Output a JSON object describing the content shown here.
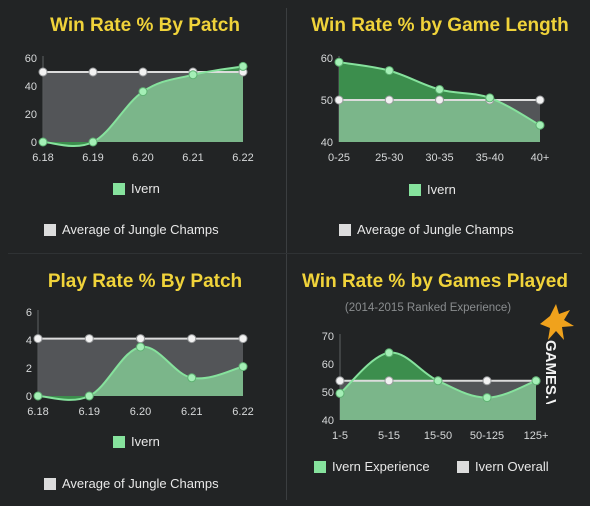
{
  "colors": {
    "champion_line": "#86e29d",
    "champion_fill_above": "#3f9a52",
    "champion_fill": "#7bb68a",
    "average_line": "#dcdcdc",
    "average_fill": "#56585b",
    "title": "#f0d33a",
    "swatch_champion": "#86e29d",
    "swatch_average": "#dcdcdc"
  },
  "watermark": {
    "text": "GAMES.VN",
    "icon": "games-logo"
  },
  "chart_data": [
    {
      "type": "area",
      "title": "Win Rate % By Patch",
      "categories": [
        "6.18",
        "6.19",
        "6.20",
        "6.21",
        "6.22"
      ],
      "ylim": [
        0,
        60
      ],
      "yticks": [
        "0",
        "20",
        "40",
        "60"
      ],
      "series": [
        {
          "name": "Ivern",
          "values": [
            0,
            0,
            36,
            48,
            54
          ]
        },
        {
          "name": "Average of Jungle Champs",
          "values": [
            50,
            50,
            50,
            50,
            50
          ]
        }
      ],
      "legend": [
        "Ivern",
        "Average of Jungle Champs"
      ]
    },
    {
      "type": "area",
      "title": "Win Rate % by Game Length",
      "categories": [
        "0-25",
        "25-30",
        "30-35",
        "35-40",
        "40+"
      ],
      "ylim": [
        40,
        60
      ],
      "yticks": [
        "40",
        "50",
        "60"
      ],
      "series": [
        {
          "name": "Ivern",
          "values": [
            59,
            57,
            52.5,
            50.5,
            44
          ]
        },
        {
          "name": "Average of Jungle Champs",
          "values": [
            50,
            50,
            50,
            50,
            50
          ]
        }
      ],
      "legend": [
        "Ivern",
        "Average of Jungle Champs"
      ]
    },
    {
      "type": "area",
      "title": "Play Rate % By Patch",
      "categories": [
        "6.18",
        "6.19",
        "6.20",
        "6.21",
        "6.22"
      ],
      "ylim": [
        0,
        6
      ],
      "yticks": [
        "0",
        "2",
        "4",
        "6"
      ],
      "series": [
        {
          "name": "Ivern",
          "values": [
            0,
            0,
            3.5,
            1.3,
            2.1
          ]
        },
        {
          "name": "Average of Jungle Champs",
          "values": [
            4.1,
            4.1,
            4.1,
            4.1,
            4.1
          ]
        }
      ],
      "legend": [
        "Ivern",
        "Average of Jungle Champs"
      ]
    },
    {
      "type": "area",
      "title": "Win Rate % by Games Played",
      "subtitle": "(2014-2015 Ranked Experience)",
      "categories": [
        "1-5",
        "5-15",
        "15-50",
        "50-125",
        "125+"
      ],
      "ylim": [
        40,
        70
      ],
      "yticks": [
        "40",
        "50",
        "60",
        "70"
      ],
      "series": [
        {
          "name": "Ivern Experience",
          "values": [
            49.5,
            64,
            54,
            48,
            54
          ]
        },
        {
          "name": "Ivern Overall",
          "values": [
            54,
            54,
            54,
            54,
            54
          ]
        }
      ],
      "legend": [
        "Ivern Experience",
        "Ivern Overall"
      ]
    }
  ]
}
